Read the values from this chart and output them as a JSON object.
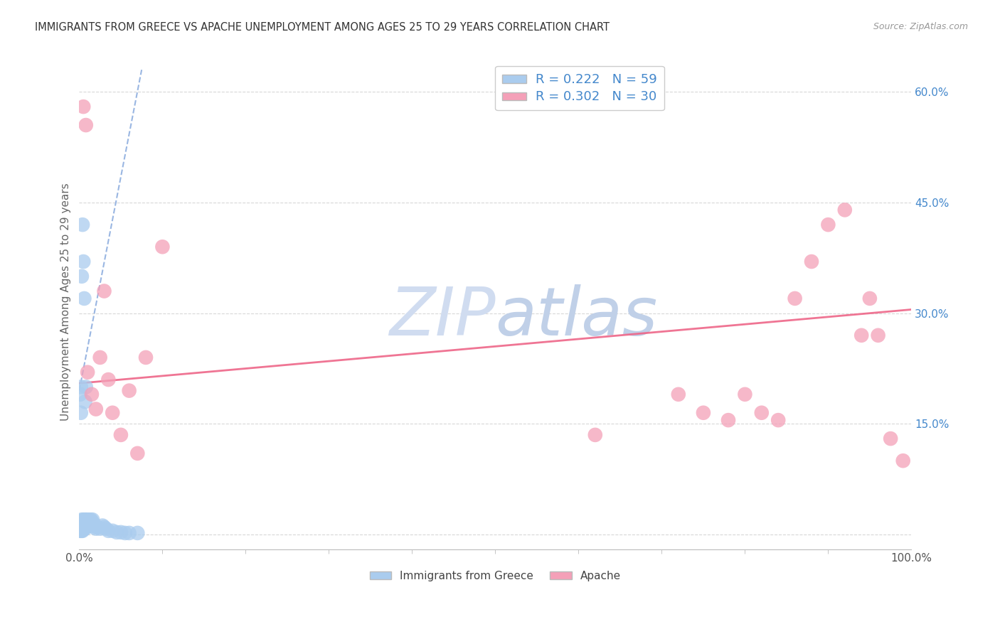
{
  "title": "IMMIGRANTS FROM GREECE VS APACHE UNEMPLOYMENT AMONG AGES 25 TO 29 YEARS CORRELATION CHART",
  "source": "Source: ZipAtlas.com",
  "ylabel": "Unemployment Among Ages 25 to 29 years",
  "legend_label1": "Immigrants from Greece",
  "legend_label2": "Apache",
  "r1": 0.222,
  "n1": 59,
  "r2": 0.302,
  "n2": 30,
  "color1": "#aaccee",
  "color2": "#f4a0b8",
  "trendline1_color": "#88aadd",
  "trendline2_color": "#ee6688",
  "legend_text_color": "#4488cc",
  "background_color": "#ffffff",
  "grid_color": "#d8d8d8",
  "xlim": [
    0.0,
    1.0
  ],
  "ylim": [
    -0.02,
    0.65
  ],
  "xtick_left_label": "0.0%",
  "xtick_right_label": "100.0%",
  "ytick_vals": [
    0.0,
    0.15,
    0.3,
    0.45,
    0.6
  ],
  "ytick_labels_right": [
    "",
    "15.0%",
    "30.0%",
    "45.0%",
    "60.0%"
  ],
  "blue_points_x": [
    0.001,
    0.001,
    0.001,
    0.002,
    0.002,
    0.002,
    0.003,
    0.003,
    0.003,
    0.003,
    0.004,
    0.004,
    0.004,
    0.005,
    0.005,
    0.005,
    0.006,
    0.006,
    0.007,
    0.007,
    0.007,
    0.008,
    0.008,
    0.009,
    0.009,
    0.01,
    0.01,
    0.011,
    0.011,
    0.012,
    0.013,
    0.014,
    0.015,
    0.016,
    0.017,
    0.018,
    0.019,
    0.02,
    0.022,
    0.025,
    0.028,
    0.03,
    0.032,
    0.035,
    0.04,
    0.045,
    0.05,
    0.055,
    0.06,
    0.07,
    0.001,
    0.002,
    0.002,
    0.003,
    0.004,
    0.005,
    0.006,
    0.007,
    0.008
  ],
  "blue_points_y": [
    0.005,
    0.01,
    0.015,
    0.005,
    0.01,
    0.018,
    0.005,
    0.008,
    0.012,
    0.02,
    0.005,
    0.01,
    0.018,
    0.008,
    0.013,
    0.02,
    0.01,
    0.015,
    0.008,
    0.013,
    0.02,
    0.01,
    0.018,
    0.012,
    0.02,
    0.013,
    0.018,
    0.015,
    0.02,
    0.015,
    0.018,
    0.02,
    0.018,
    0.02,
    0.015,
    0.012,
    0.01,
    0.008,
    0.01,
    0.008,
    0.012,
    0.01,
    0.008,
    0.005,
    0.005,
    0.003,
    0.003,
    0.002,
    0.002,
    0.002,
    0.19,
    0.165,
    0.2,
    0.35,
    0.42,
    0.37,
    0.32,
    0.18,
    0.2
  ],
  "pink_points_x": [
    0.005,
    0.008,
    0.01,
    0.015,
    0.02,
    0.025,
    0.03,
    0.035,
    0.04,
    0.05,
    0.06,
    0.07,
    0.08,
    0.1,
    0.62,
    0.72,
    0.75,
    0.78,
    0.8,
    0.82,
    0.84,
    0.86,
    0.88,
    0.9,
    0.92,
    0.94,
    0.95,
    0.96,
    0.975,
    0.99
  ],
  "pink_points_y": [
    0.58,
    0.555,
    0.22,
    0.19,
    0.17,
    0.24,
    0.33,
    0.21,
    0.165,
    0.135,
    0.195,
    0.11,
    0.24,
    0.39,
    0.135,
    0.19,
    0.165,
    0.155,
    0.19,
    0.165,
    0.155,
    0.32,
    0.37,
    0.42,
    0.44,
    0.27,
    0.32,
    0.27,
    0.13,
    0.1
  ],
  "trendline1_x": [
    0.0,
    0.075
  ],
  "trendline1_y": [
    0.195,
    0.63
  ],
  "trendline2_x": [
    0.0,
    1.0
  ],
  "trendline2_y": [
    0.205,
    0.305
  ],
  "watermark_zip": "ZIP",
  "watermark_atlas": "atlas",
  "watermark_color_zip": "#d0dcf0",
  "watermark_color_atlas": "#c0d0e8",
  "watermark_fontsize": 68
}
